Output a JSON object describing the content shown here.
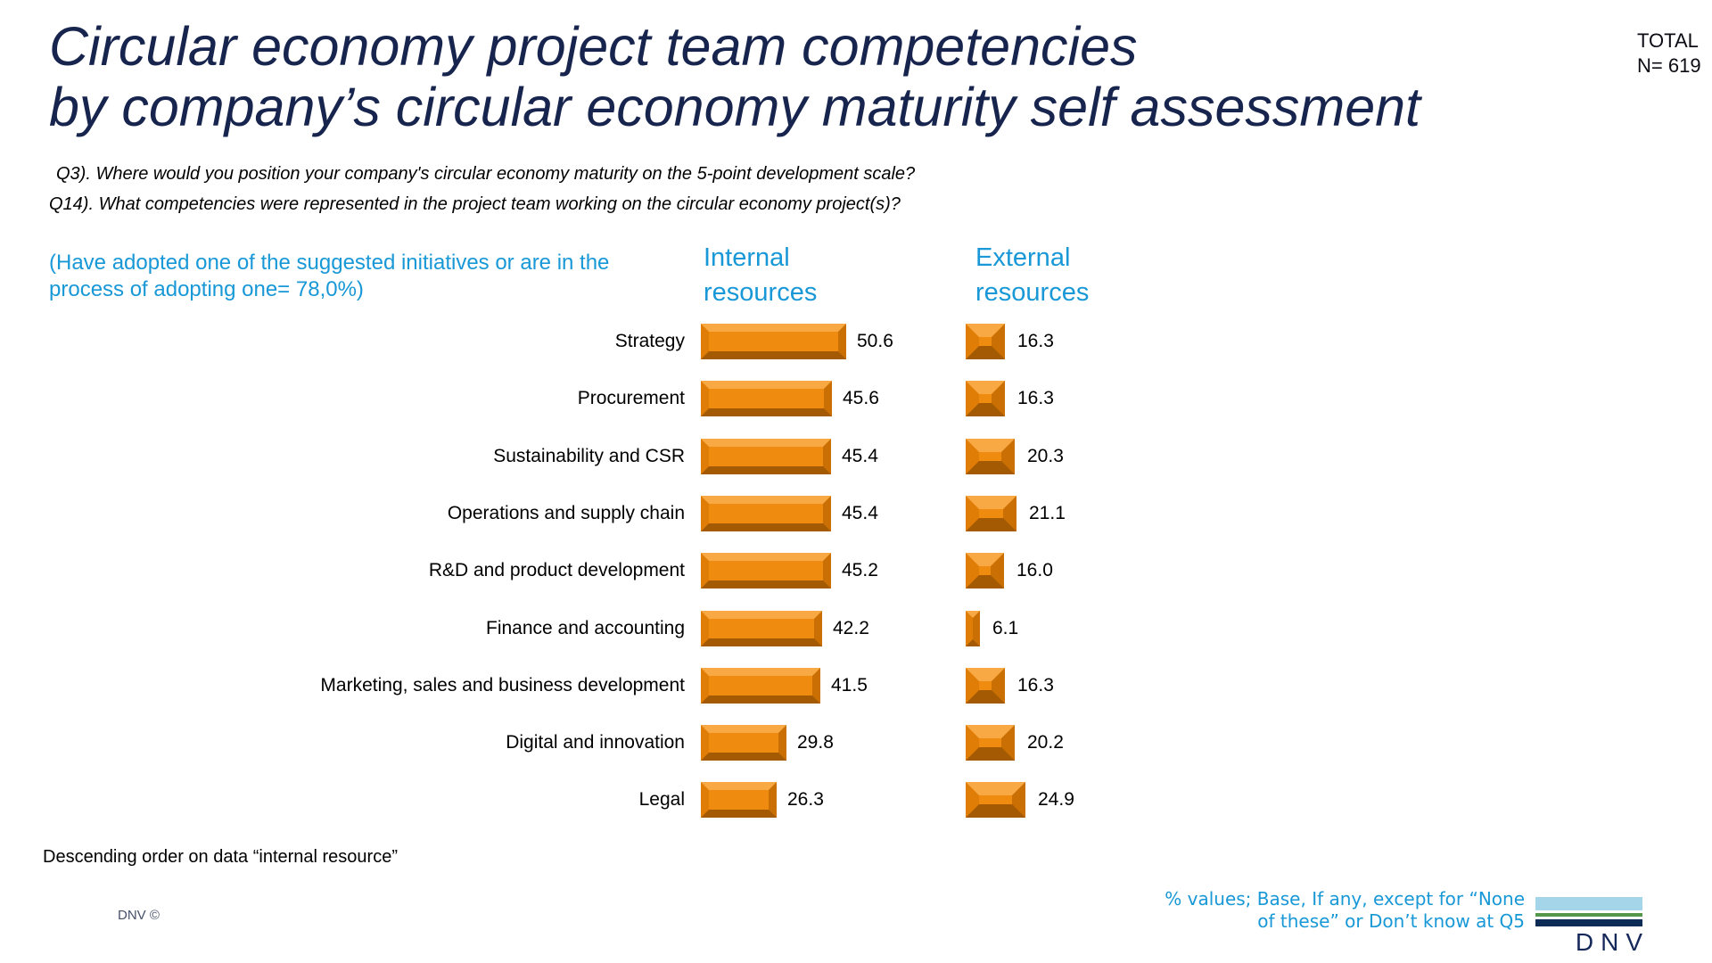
{
  "slide": {
    "title_line1": "Circular economy project team competencies",
    "title_line2": "by company’s circular economy maturity self assessment",
    "total_label": "TOTAL",
    "total_value": "N= 619",
    "question1": "Q3). Where would you position your company's circular economy maturity on the 5-point development scale?",
    "question2": "Q14). What competencies were represented in the project team working on the circular economy project(s)?",
    "segment_note": "(Have adopted one of the suggested initiatives or are in the process of adopting one= 78,0%)",
    "footnote": "Descending order on data “internal resource”",
    "copyright": "DNV ©",
    "base_note_line1": "% values; Base, If any, except for “None",
    "base_note_line2": "of these” or Don’t know at Q5",
    "logo_text": "DNV"
  },
  "chart_data": {
    "type": "bar",
    "orientation": "horizontal",
    "categories": [
      "Strategy",
      "Procurement",
      "Sustainability and CSR",
      "Operations and supply chain",
      "R&D and product development",
      "Finance and accounting",
      "Marketing, sales and business development",
      "Digital and innovation",
      "Legal"
    ],
    "series": [
      {
        "name": "Internal resources",
        "values": [
          50.6,
          45.6,
          45.4,
          45.4,
          45.2,
          42.2,
          41.5,
          29.8,
          26.3
        ]
      },
      {
        "name": "External resources",
        "values": [
          16.3,
          16.3,
          20.3,
          21.1,
          16.0,
          6.1,
          16.3,
          20.2,
          24.9
        ]
      }
    ],
    "value_label_format": "one_decimal",
    "sort_order": "descending by internal resources",
    "legend_position": "column headers above bars",
    "grid": false,
    "axis_shown": false
  },
  "colors": {
    "background": "#FFFFFF",
    "title_navy": "#17254E",
    "accent_blue": "#1898D6",
    "text_black": "#000000",
    "bar_face": "#EF8C10",
    "bar_bevel_top": "#F8A943",
    "bar_bevel_left": "#E07D06",
    "bar_bevel_right": "#C96F04",
    "bar_bevel_bottom": "#A45A02",
    "logo_light_blue": "#A5D5E9",
    "logo_green": "#55984C",
    "logo_navy": "#0D2B57"
  }
}
